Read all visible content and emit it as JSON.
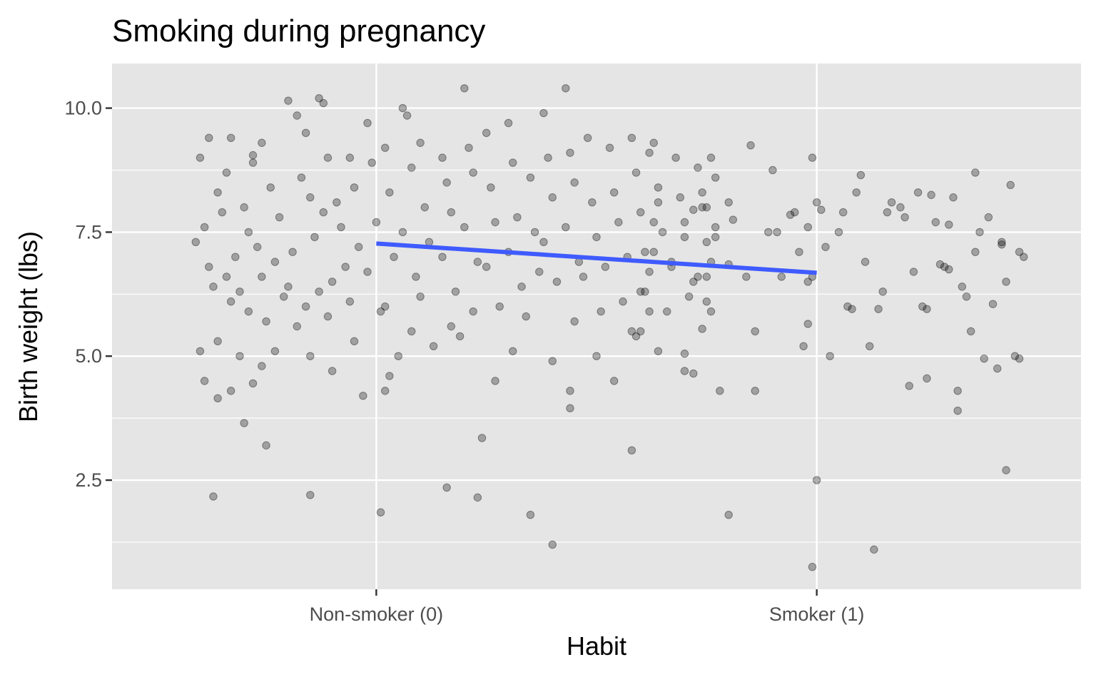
{
  "chart_data": {
    "type": "scatter",
    "title": "Smoking during pregnancy",
    "xlabel": "Habit",
    "ylabel": "Birth weight (lbs)",
    "x_categories": [
      "Non-smoker (0)",
      "Smoker (1)"
    ],
    "x_values": [
      0,
      1
    ],
    "xlim": [
      -0.6,
      1.6
    ],
    "ylim": [
      0.3,
      10.9
    ],
    "y_ticks": [
      2.5,
      5.0,
      7.5,
      10.0
    ],
    "y_tick_labels": [
      "2.5",
      "5.0",
      "7.5",
      "10.0"
    ],
    "grid": true,
    "jitter": true,
    "panel_background": "#e5e5e5",
    "grid_color": "#ffffff",
    "point_color": "#000000",
    "point_alpha": 0.3,
    "fit_line": {
      "color": "#3f5bff",
      "intercept": 7.27,
      "slope": -0.59,
      "x_range": [
        0,
        1
      ]
    },
    "series": [
      {
        "points": [
          [
            -0.4,
            9.0
          ],
          [
            -0.38,
            9.4
          ],
          [
            -0.36,
            8.3
          ],
          [
            -0.39,
            7.6
          ],
          [
            -0.41,
            7.3
          ],
          [
            -0.38,
            6.8
          ],
          [
            -0.4,
            5.1
          ],
          [
            -0.39,
            4.5
          ],
          [
            -0.37,
            6.4
          ],
          [
            -0.36,
            5.3
          ],
          [
            -0.35,
            7.9
          ],
          [
            -0.33,
            9.4
          ],
          [
            -0.34,
            8.7
          ],
          [
            -0.32,
            7.0
          ],
          [
            -0.33,
            6.1
          ],
          [
            -0.31,
            5.0
          ],
          [
            -0.3,
            8.0
          ],
          [
            -0.29,
            7.5
          ],
          [
            -0.31,
            6.3
          ],
          [
            -0.36,
            4.15
          ],
          [
            -0.37,
            2.17
          ],
          [
            -0.33,
            4.3
          ],
          [
            -0.3,
            3.65
          ],
          [
            -0.28,
            8.9
          ],
          [
            -0.27,
            7.2
          ],
          [
            -0.26,
            6.6
          ],
          [
            -0.25,
            5.7
          ],
          [
            -0.26,
            4.8
          ],
          [
            -0.28,
            9.05
          ],
          [
            -0.24,
            8.4
          ],
          [
            -0.22,
            7.8
          ],
          [
            -0.23,
            6.9
          ],
          [
            -0.21,
            6.2
          ],
          [
            -0.23,
            5.1
          ],
          [
            -0.2,
            10.15
          ],
          [
            -0.18,
            9.85
          ],
          [
            -0.17,
            8.6
          ],
          [
            -0.19,
            7.1
          ],
          [
            -0.2,
            6.4
          ],
          [
            -0.18,
            5.6
          ],
          [
            -0.28,
            4.45
          ],
          [
            -0.25,
            3.2
          ],
          [
            -0.26,
            9.3
          ],
          [
            -0.16,
            9.5
          ],
          [
            -0.15,
            8.2
          ],
          [
            -0.14,
            7.4
          ],
          [
            -0.16,
            6.0
          ],
          [
            -0.15,
            5.0
          ],
          [
            -0.13,
            10.2
          ],
          [
            -0.12,
            10.1
          ],
          [
            -0.11,
            9.0
          ],
          [
            -0.12,
            7.9
          ],
          [
            -0.1,
            6.5
          ],
          [
            -0.11,
            5.8
          ],
          [
            -0.09,
            8.1
          ],
          [
            -0.08,
            7.6
          ],
          [
            -0.1,
            4.7
          ],
          [
            -0.15,
            2.2
          ],
          [
            -0.07,
            6.8
          ],
          [
            -0.06,
            9.0
          ],
          [
            -0.05,
            8.4
          ],
          [
            -0.04,
            7.2
          ],
          [
            -0.06,
            6.1
          ],
          [
            -0.05,
            5.3
          ],
          [
            -0.03,
            4.2
          ],
          [
            -0.02,
            9.7
          ],
          [
            -0.01,
            8.9
          ],
          [
            0.0,
            7.7
          ],
          [
            -0.02,
            6.7
          ],
          [
            0.01,
            5.9
          ],
          [
            0.02,
            9.2
          ],
          [
            0.03,
            8.3
          ],
          [
            0.04,
            7.0
          ],
          [
            0.02,
            6.0
          ],
          [
            0.05,
            5.0
          ],
          [
            0.03,
            4.6
          ],
          [
            0.02,
            4.3
          ],
          [
            0.01,
            1.85
          ],
          [
            0.06,
            10.0
          ],
          [
            0.07,
            9.85
          ],
          [
            0.08,
            8.8
          ],
          [
            0.06,
            7.5
          ],
          [
            0.09,
            6.6
          ],
          [
            0.08,
            5.5
          ],
          [
            0.1,
            9.3
          ],
          [
            0.11,
            8.0
          ],
          [
            0.12,
            7.3
          ],
          [
            0.1,
            6.2
          ],
          [
            0.13,
            5.2
          ],
          [
            0.15,
            9.0
          ],
          [
            0.16,
            8.5
          ],
          [
            0.17,
            7.9
          ],
          [
            0.15,
            7.0
          ],
          [
            0.18,
            6.3
          ],
          [
            0.17,
            5.6
          ],
          [
            0.16,
            2.35
          ],
          [
            0.2,
            10.4
          ],
          [
            0.21,
            9.2
          ],
          [
            0.22,
            8.7
          ],
          [
            0.2,
            7.6
          ],
          [
            0.23,
            6.9
          ],
          [
            0.22,
            5.9
          ],
          [
            0.19,
            5.4
          ],
          [
            0.25,
            9.5
          ],
          [
            0.26,
            8.4
          ],
          [
            0.27,
            7.7
          ],
          [
            0.25,
            6.8
          ],
          [
            0.28,
            6.0
          ],
          [
            0.27,
            4.5
          ],
          [
            0.24,
            3.35
          ],
          [
            0.3,
            9.7
          ],
          [
            0.31,
            8.9
          ],
          [
            0.32,
            7.8
          ],
          [
            0.3,
            7.1
          ],
          [
            0.33,
            6.4
          ],
          [
            0.31,
            5.1
          ],
          [
            0.35,
            8.6
          ],
          [
            0.36,
            7.5
          ],
          [
            0.37,
            6.7
          ],
          [
            0.34,
            5.8
          ],
          [
            0.38,
            9.9
          ],
          [
            0.39,
            9.0
          ],
          [
            0.4,
            8.2
          ],
          [
            0.38,
            7.3
          ],
          [
            0.41,
            6.5
          ],
          [
            0.4,
            4.9
          ],
          [
            0.4,
            1.2
          ],
          [
            0.35,
            1.8
          ],
          [
            0.43,
            10.4
          ],
          [
            0.44,
            9.1
          ],
          [
            0.45,
            8.5
          ],
          [
            0.43,
            7.6
          ],
          [
            0.46,
            6.9
          ],
          [
            0.45,
            5.7
          ],
          [
            0.44,
            4.3
          ],
          [
            0.44,
            3.95
          ],
          [
            0.48,
            9.4
          ],
          [
            0.49,
            8.1
          ],
          [
            0.5,
            7.4
          ],
          [
            0.47,
            6.6
          ],
          [
            0.51,
            5.9
          ],
          [
            0.5,
            5.0
          ],
          [
            0.53,
            9.2
          ],
          [
            0.54,
            8.3
          ],
          [
            0.55,
            7.7
          ],
          [
            0.52,
            6.8
          ],
          [
            0.56,
            6.1
          ],
          [
            0.54,
            4.5
          ],
          [
            0.58,
            9.4
          ],
          [
            0.59,
            8.7
          ],
          [
            0.6,
            7.9
          ],
          [
            0.57,
            7.0
          ],
          [
            0.61,
            6.3
          ],
          [
            0.6,
            5.5
          ],
          [
            0.58,
            3.1
          ],
          [
            0.63,
            9.3
          ],
          [
            0.64,
            8.4
          ],
          [
            0.65,
            7.5
          ],
          [
            0.62,
            6.7
          ],
          [
            0.66,
            5.9
          ],
          [
            0.64,
            5.1
          ],
          [
            0.68,
            9.0
          ],
          [
            0.69,
            8.2
          ],
          [
            0.7,
            7.4
          ],
          [
            0.67,
            6.9
          ],
          [
            0.71,
            6.2
          ],
          [
            0.7,
            5.05
          ],
          [
            0.73,
            8.8
          ],
          [
            0.74,
            8.0
          ],
          [
            0.75,
            7.3
          ],
          [
            0.72,
            6.5
          ],
          [
            0.76,
            5.9
          ],
          [
            0.74,
            5.55
          ],
          [
            0.76,
            9.0
          ],
          [
            0.77,
            8.6
          ],
          [
            0.77,
            7.6
          ],
          [
            0.76,
            6.9
          ],
          [
            0.77,
            7.4
          ],
          [
            0.23,
            2.15
          ],
          [
            -0.13,
            6.3
          ],
          [
            -0.29,
            5.9
          ],
          [
            -0.34,
            6.6
          ]
        ]
      },
      {
        "points": [
          [
            0.62,
            9.1
          ],
          [
            0.61,
            7.1
          ],
          [
            0.63,
            7.7
          ],
          [
            0.6,
            6.3
          ],
          [
            0.62,
            5.9
          ],
          [
            0.58,
            5.5
          ],
          [
            0.59,
            5.4
          ],
          [
            0.63,
            7.1
          ],
          [
            0.64,
            8.1
          ],
          [
            0.67,
            6.8
          ],
          [
            0.7,
            7.7
          ],
          [
            0.72,
            7.95
          ],
          [
            0.7,
            4.7
          ],
          [
            0.72,
            4.65
          ],
          [
            0.73,
            6.6
          ],
          [
            0.75,
            6.6
          ],
          [
            0.74,
            8.3
          ],
          [
            0.75,
            8.0
          ],
          [
            0.75,
            6.1
          ],
          [
            0.78,
            4.3
          ],
          [
            0.8,
            6.85
          ],
          [
            0.81,
            7.75
          ],
          [
            0.8,
            8.1
          ],
          [
            0.84,
            6.6
          ],
          [
            0.86,
            5.5
          ],
          [
            0.85,
            9.25
          ],
          [
            0.8,
            1.8
          ],
          [
            0.86,
            4.3
          ],
          [
            0.89,
            7.5
          ],
          [
            0.9,
            8.75
          ],
          [
            0.91,
            7.5
          ],
          [
            0.92,
            6.6
          ],
          [
            0.94,
            7.85
          ],
          [
            0.95,
            7.9
          ],
          [
            0.96,
            7.1
          ],
          [
            0.97,
            5.2
          ],
          [
            0.98,
            6.5
          ],
          [
            0.99,
            6.6
          ],
          [
            0.98,
            7.6
          ],
          [
            0.99,
            9.0
          ],
          [
            1.0,
            8.1
          ],
          [
            1.01,
            7.95
          ],
          [
            1.02,
            7.2
          ],
          [
            1.03,
            5.0
          ],
          [
            1.05,
            7.5
          ],
          [
            1.06,
            7.9
          ],
          [
            0.98,
            5.65
          ],
          [
            1.07,
            6.0
          ],
          [
            1.08,
            5.95
          ],
          [
            1.09,
            8.3
          ],
          [
            1.1,
            8.65
          ],
          [
            1.11,
            6.9
          ],
          [
            1.12,
            5.2
          ],
          [
            1.14,
            5.95
          ],
          [
            1.15,
            6.3
          ],
          [
            1.16,
            7.9
          ],
          [
            1.17,
            8.1
          ],
          [
            1.19,
            8.0
          ],
          [
            1.2,
            7.8
          ],
          [
            1.21,
            4.4
          ],
          [
            1.22,
            6.7
          ],
          [
            1.23,
            8.3
          ],
          [
            1.24,
            6.0
          ],
          [
            1.25,
            5.95
          ],
          [
            1.26,
            8.25
          ],
          [
            1.27,
            7.7
          ],
          [
            1.28,
            6.85
          ],
          [
            1.29,
            6.8
          ],
          [
            1.3,
            7.65
          ],
          [
            1.31,
            8.2
          ],
          [
            1.32,
            4.3
          ],
          [
            1.33,
            6.4
          ],
          [
            1.34,
            6.2
          ],
          [
            1.35,
            5.5
          ],
          [
            1.36,
            8.7
          ],
          [
            1.37,
            7.5
          ],
          [
            1.38,
            4.95
          ],
          [
            1.39,
            7.8
          ],
          [
            1.4,
            6.05
          ],
          [
            1.41,
            4.75
          ],
          [
            1.42,
            7.3
          ],
          [
            1.43,
            6.5
          ],
          [
            1.44,
            8.45
          ],
          [
            1.46,
            7.1
          ],
          [
            1.47,
            7.0
          ],
          [
            1.45,
            5.0
          ],
          [
            1.46,
            4.95
          ],
          [
            1.32,
            3.9
          ],
          [
            1.43,
            2.7
          ],
          [
            1.13,
            1.1
          ],
          [
            0.99,
            0.75
          ],
          [
            1.0,
            2.5
          ],
          [
            1.25,
            4.55
          ],
          [
            1.3,
            6.75
          ],
          [
            1.36,
            7.1
          ],
          [
            1.42,
            7.25
          ]
        ]
      }
    ]
  }
}
